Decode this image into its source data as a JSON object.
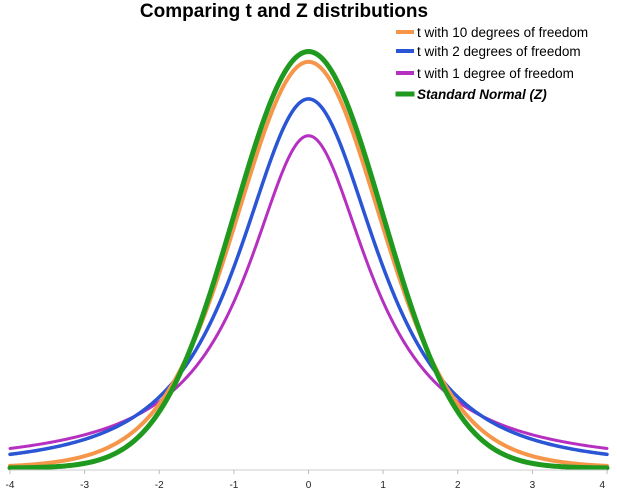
{
  "chart_data": {
    "type": "line",
    "title": "Comparing t and Z distributions",
    "xlabel": "",
    "ylabel": "",
    "xlim": [
      -4,
      4
    ],
    "ylim": [
      0,
      0.41
    ],
    "x_ticks": [
      "-4",
      "-3",
      "-2",
      "-1",
      "0",
      "1",
      "2",
      "3",
      "4"
    ],
    "grid": false,
    "legend_position": "top-right",
    "series": [
      {
        "name": "t with 10 degrees of freedom",
        "color": "#f5964a",
        "dist": "t",
        "df": 10,
        "peak": 0.389
      },
      {
        "name": "t with 2 degrees of freedom",
        "color": "#2a55d4",
        "dist": "t",
        "df": 2,
        "peak": 0.354
      },
      {
        "name": "t with 1 degree of freedom",
        "color": "#b530c0",
        "dist": "t",
        "df": 1,
        "peak": 0.318
      },
      {
        "name": "Standard Normal (Z)",
        "color": "#1f9a1f",
        "dist": "normal",
        "df": null,
        "peak": 0.399
      }
    ]
  }
}
